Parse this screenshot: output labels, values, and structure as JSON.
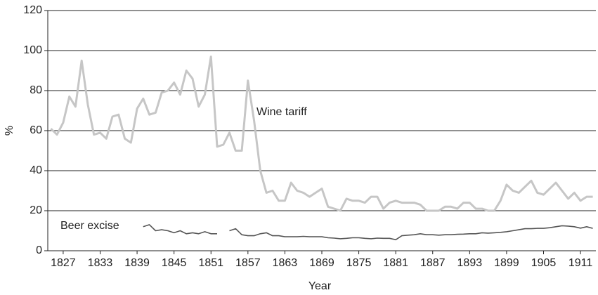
{
  "chart_data": {
    "type": "line",
    "x": [
      1825,
      1826,
      1827,
      1828,
      1829,
      1830,
      1831,
      1832,
      1833,
      1834,
      1835,
      1836,
      1837,
      1838,
      1839,
      1840,
      1841,
      1842,
      1843,
      1844,
      1845,
      1846,
      1847,
      1848,
      1849,
      1850,
      1851,
      1852,
      1853,
      1854,
      1855,
      1856,
      1857,
      1858,
      1859,
      1860,
      1861,
      1862,
      1863,
      1864,
      1865,
      1866,
      1867,
      1868,
      1869,
      1870,
      1871,
      1872,
      1873,
      1874,
      1875,
      1876,
      1877,
      1878,
      1879,
      1880,
      1881,
      1882,
      1883,
      1884,
      1885,
      1886,
      1887,
      1888,
      1889,
      1890,
      1891,
      1892,
      1893,
      1894,
      1895,
      1896,
      1897,
      1898,
      1899,
      1900,
      1901,
      1902,
      1903,
      1904,
      1905,
      1906,
      1907,
      1908,
      1909,
      1910,
      1911,
      1912,
      1913
    ],
    "series": [
      {
        "name": "Wine tariff",
        "color": "#c6c6c6",
        "values": [
          61,
          58,
          64,
          77,
          72,
          95,
          73,
          58,
          59,
          56,
          67,
          68,
          56,
          54,
          71,
          76,
          68,
          69,
          79,
          80,
          84,
          78,
          90,
          86,
          72,
          78,
          97,
          52,
          53,
          59,
          50,
          50,
          85,
          65,
          40,
          29,
          30,
          25,
          25,
          34,
          30,
          29,
          27,
          29,
          31,
          22,
          21,
          20,
          26,
          25,
          25,
          24,
          27,
          27,
          21,
          24,
          25,
          24,
          24,
          24,
          23,
          20,
          20,
          20,
          22,
          22,
          21,
          24,
          24,
          21,
          21,
          20,
          20,
          25,
          33,
          30,
          29,
          32,
          35,
          29,
          28,
          31,
          34,
          30,
          26,
          29,
          25,
          27,
          27
        ]
      },
      {
        "name": "Beer excise",
        "color": "#555555",
        "values": [
          null,
          null,
          null,
          null,
          null,
          null,
          null,
          null,
          null,
          null,
          null,
          null,
          null,
          null,
          null,
          12,
          13,
          10,
          10.5,
          10,
          9,
          10,
          8.5,
          9,
          8.5,
          9.5,
          8.5,
          8.5,
          null,
          10,
          11,
          8,
          7.5,
          7.5,
          8.5,
          9,
          7.5,
          7.5,
          7,
          7,
          7,
          7.2,
          7,
          7,
          7,
          6.5,
          6.3,
          6,
          6.2,
          6.5,
          6.5,
          6.2,
          6,
          6.3,
          6.2,
          6.2,
          5.5,
          7.5,
          7.8,
          8,
          8.5,
          8,
          8,
          7.8,
          8,
          8,
          8.2,
          8.3,
          8.5,
          8.5,
          9,
          8.8,
          9,
          9.2,
          9.5,
          10,
          10.5,
          11,
          11,
          11.2,
          11.2,
          11.5,
          12,
          12.5,
          12.3,
          12,
          11.3,
          12,
          11.2
        ]
      }
    ],
    "xlabel": "Year",
    "ylabel": "%",
    "xlim": [
      1824.5,
      1913.5
    ],
    "xticks": [
      1827,
      1833,
      1839,
      1845,
      1851,
      1857,
      1863,
      1869,
      1875,
      1881,
      1887,
      1893,
      1899,
      1905,
      1911
    ],
    "ylim": [
      0,
      120
    ],
    "yticks": [
      0,
      20,
      40,
      60,
      80,
      100,
      120
    ],
    "grid": true
  }
}
